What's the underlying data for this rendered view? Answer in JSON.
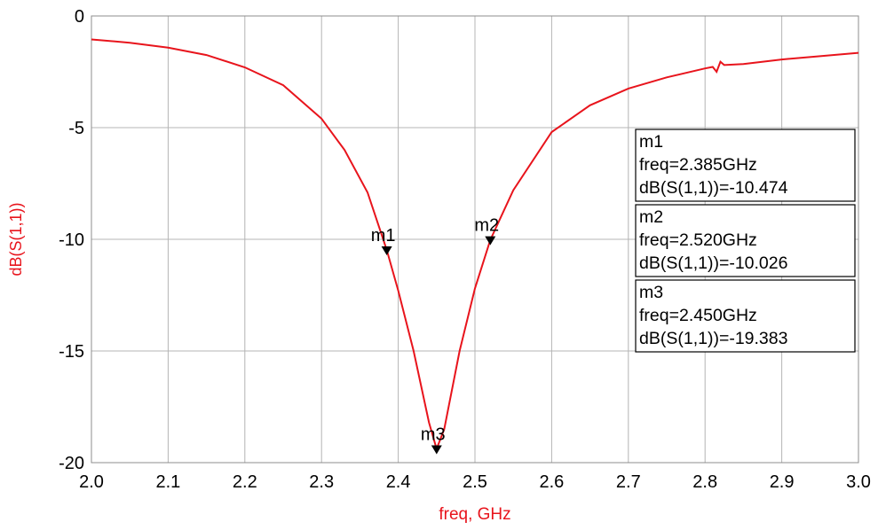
{
  "chart_data": {
    "type": "line",
    "xlabel": "freq, GHz",
    "ylabel": "dB(S(1,1))",
    "xlim": [
      2.0,
      3.0
    ],
    "ylim": [
      -20,
      0
    ],
    "grid": true,
    "x_ticks": [
      "2.0",
      "2.1",
      "2.2",
      "2.3",
      "2.4",
      "2.5",
      "2.6",
      "2.7",
      "2.8",
      "2.9",
      "3.0"
    ],
    "y_ticks": [
      "0",
      "-5",
      "-10",
      "-15",
      "-20"
    ],
    "series": [
      {
        "color": "#e8141c",
        "points": [
          [
            2.0,
            -1.05
          ],
          [
            2.05,
            -1.2
          ],
          [
            2.1,
            -1.42
          ],
          [
            2.15,
            -1.75
          ],
          [
            2.2,
            -2.3
          ],
          [
            2.25,
            -3.1
          ],
          [
            2.3,
            -4.6
          ],
          [
            2.33,
            -6.0
          ],
          [
            2.36,
            -7.9
          ],
          [
            2.385,
            -10.474
          ],
          [
            2.4,
            -12.3
          ],
          [
            2.42,
            -15.0
          ],
          [
            2.44,
            -18.2
          ],
          [
            2.45,
            -19.383
          ],
          [
            2.46,
            -18.5
          ],
          [
            2.48,
            -15.0
          ],
          [
            2.5,
            -12.2
          ],
          [
            2.52,
            -10.026
          ],
          [
            2.55,
            -7.8
          ],
          [
            2.6,
            -5.2
          ],
          [
            2.65,
            -4.0
          ],
          [
            2.7,
            -3.25
          ],
          [
            2.75,
            -2.75
          ],
          [
            2.8,
            -2.35
          ],
          [
            2.81,
            -2.28
          ],
          [
            2.815,
            -2.5
          ],
          [
            2.82,
            -2.05
          ],
          [
            2.825,
            -2.2
          ],
          [
            2.85,
            -2.15
          ],
          [
            2.9,
            -1.95
          ],
          [
            2.95,
            -1.8
          ],
          [
            3.0,
            -1.65
          ]
        ]
      }
    ],
    "markers": [
      {
        "label": "m1",
        "x": 2.385,
        "y": -10.474
      },
      {
        "label": "m2",
        "x": 2.52,
        "y": -10.026
      },
      {
        "label": "m3",
        "x": 2.45,
        "y": -19.383
      }
    ],
    "marker_readouts": [
      {
        "name": "m1",
        "freq": "freq=2.385GHz",
        "value": "dB(S(1,1))=-10.474"
      },
      {
        "name": "m2",
        "freq": "freq=2.520GHz",
        "value": "dB(S(1,1))=-10.026"
      },
      {
        "name": "m3",
        "freq": "freq=2.450GHz",
        "value": "dB(S(1,1))=-19.383"
      }
    ],
    "colors": {
      "trace": "#e8141c",
      "label": "#e8141c",
      "grid": "#b4b4b4",
      "axis_text": "#000000"
    }
  }
}
